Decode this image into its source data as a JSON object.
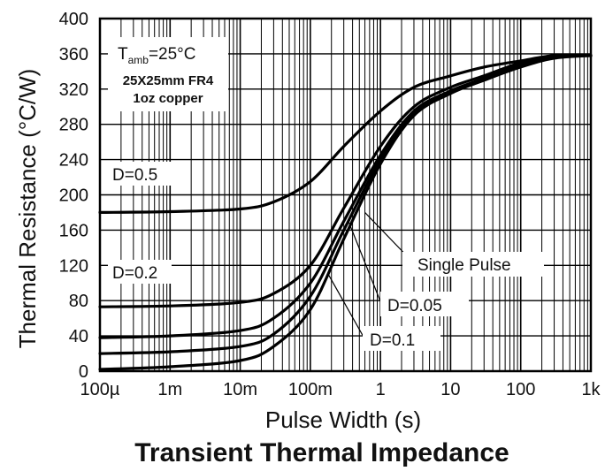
{
  "chart_data": {
    "type": "line",
    "title": "Transient Thermal Impedance",
    "xlabel": "Pulse Width (s)",
    "ylabel": "Thermal Resistance (°C/W)",
    "x_scale": "log",
    "xlim": [
      0.0001,
      1000
    ],
    "ylim": [
      0,
      400
    ],
    "x_tick_values": [
      0.0001,
      0.001,
      0.01,
      0.1,
      1,
      10,
      100,
      1000
    ],
    "x_tick_labels": [
      "100µ",
      "1m",
      "10m",
      "100m",
      "1",
      "10",
      "100",
      "1k"
    ],
    "y_tick_values": [
      0,
      40,
      80,
      120,
      160,
      200,
      240,
      280,
      320,
      360,
      400
    ],
    "y_tick_labels": [
      "0",
      "40",
      "80",
      "120",
      "160",
      "200",
      "240",
      "280",
      "320",
      "360",
      "400"
    ],
    "grid": true,
    "conditions": {
      "tamb_prefix": "T",
      "tamb_sub": "amb",
      "tamb_value": "=25°C",
      "board": "25X25mm FR4",
      "copper": "1oz copper"
    },
    "series": [
      {
        "name": "D=0.5",
        "color": "#000000",
        "x": [
          0.0001,
          0.001,
          0.01,
          0.03,
          0.1,
          0.3,
          1,
          3,
          10,
          30,
          100,
          300,
          1000
        ],
        "y": [
          180,
          181,
          184,
          192,
          215,
          255,
          295,
          322,
          335,
          345,
          352,
          358,
          358
        ]
      },
      {
        "name": "D=0.2",
        "color": "#000000",
        "x": [
          0.0001,
          0.001,
          0.01,
          0.03,
          0.1,
          0.3,
          1,
          3,
          10,
          30,
          100,
          300,
          1000
        ],
        "y": [
          73,
          74,
          78,
          88,
          120,
          185,
          255,
          300,
          322,
          335,
          350,
          358,
          358
        ]
      },
      {
        "name": "D=0.1",
        "color": "#000000",
        "x": [
          0.0001,
          0.001,
          0.01,
          0.03,
          0.1,
          0.3,
          1,
          3,
          10,
          30,
          100,
          300,
          1000
        ],
        "y": [
          38,
          40,
          46,
          60,
          100,
          170,
          245,
          295,
          318,
          332,
          348,
          357,
          358
        ]
      },
      {
        "name": "D=0.05",
        "color": "#000000",
        "x": [
          0.0001,
          0.001,
          0.01,
          0.03,
          0.1,
          0.3,
          1,
          3,
          10,
          30,
          100,
          300,
          1000
        ],
        "y": [
          20,
          22,
          28,
          42,
          85,
          160,
          240,
          292,
          316,
          330,
          346,
          356,
          358
        ]
      },
      {
        "name": "Single Pulse",
        "color": "#000000",
        "x": [
          0.0001,
          0.001,
          0.01,
          0.03,
          0.1,
          0.3,
          1,
          3,
          10,
          30,
          100,
          300,
          1000
        ],
        "y": [
          2,
          5,
          12,
          28,
          70,
          150,
          235,
          290,
          315,
          330,
          345,
          355,
          358
        ]
      }
    ],
    "annotations": [
      {
        "text": "D=0.5"
      },
      {
        "text": "D=0.2"
      },
      {
        "text": "Single Pulse"
      },
      {
        "text": "D=0.05"
      },
      {
        "text": "D=0.1"
      }
    ]
  }
}
